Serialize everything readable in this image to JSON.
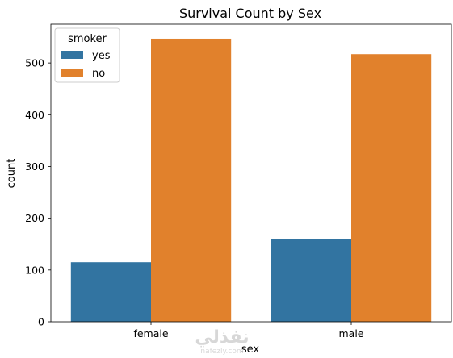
{
  "chart_data": {
    "type": "bar",
    "title": "Survival Count by Sex",
    "xlabel": "sex",
    "ylabel": "count",
    "categories": [
      "female",
      "male"
    ],
    "series": [
      {
        "name": "yes",
        "color": "#3274a1",
        "values": [
          115,
          159
        ]
      },
      {
        "name": "no",
        "color": "#e1812c",
        "values": [
          547,
          517
        ]
      }
    ],
    "ylim": [
      0,
      575
    ],
    "yticks": [
      0,
      100,
      200,
      300,
      400,
      500
    ],
    "legend": {
      "title": "smoker",
      "placement": "top-left"
    },
    "grid": false
  },
  "watermark": {
    "text": "نفذلي",
    "subtext": "nafezly.com"
  }
}
